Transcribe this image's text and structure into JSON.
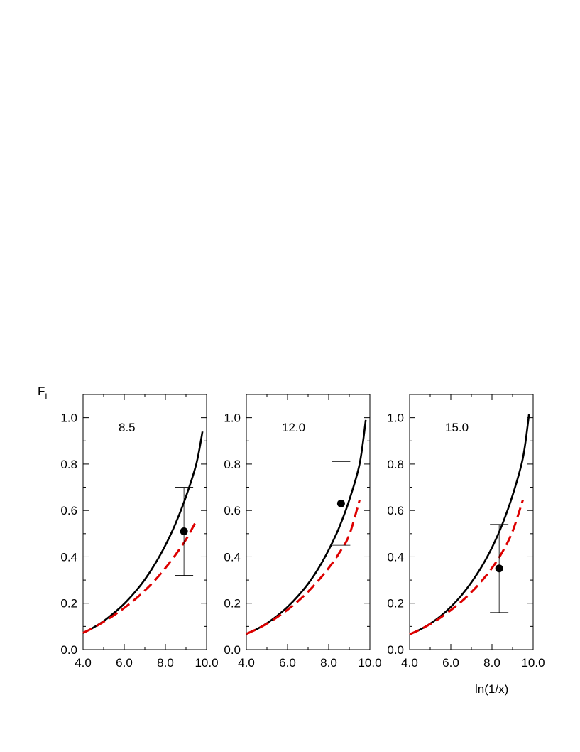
{
  "colors": {
    "solid": "#000000",
    "dashed": "#dd0000",
    "point": "#000000",
    "errorbar": "#000000",
    "frame": "#000000"
  },
  "chart_data": {
    "type": "line",
    "ylabel_main": "F",
    "ylabel_sub": "L",
    "xlabel": "ln(1/x)",
    "xlim": [
      4.0,
      10.0
    ],
    "ylim": [
      0.0,
      1.1
    ],
    "xticks": [
      "4.0",
      "6.0",
      "8.0",
      "10.0"
    ],
    "yticks": [
      "0.0",
      "0.2",
      "0.4",
      "0.6",
      "0.8",
      "1.0"
    ],
    "grid": false,
    "panels": [
      {
        "label": "8.5",
        "series": [
          {
            "style": "solid",
            "color": "#000000",
            "x": [
              4.0,
              4.5,
              5.0,
              5.5,
              6.0,
              6.5,
              7.0,
              7.5,
              8.0,
              8.5,
              9.0,
              9.5,
              9.8
            ],
            "y": [
              0.072,
              0.095,
              0.123,
              0.158,
              0.198,
              0.246,
              0.302,
              0.37,
              0.45,
              0.545,
              0.66,
              0.8,
              0.94
            ]
          },
          {
            "style": "dashed",
            "color": "#dd0000",
            "x": [
              4.0,
              4.5,
              5.0,
              5.5,
              6.0,
              6.5,
              7.0,
              7.5,
              8.0,
              8.5,
              9.0,
              9.5
            ],
            "y": [
              0.072,
              0.094,
              0.12,
              0.148,
              0.18,
              0.215,
              0.255,
              0.3,
              0.352,
              0.41,
              0.475,
              0.555
            ]
          }
        ],
        "points": [
          {
            "x": 8.9,
            "y": 0.51,
            "ylow": 0.32,
            "yhigh": 0.7
          }
        ]
      },
      {
        "label": "12.0",
        "series": [
          {
            "style": "solid",
            "color": "#000000",
            "x": [
              4.0,
              4.5,
              5.0,
              5.5,
              6.0,
              6.5,
              7.0,
              7.5,
              8.0,
              8.5,
              9.0,
              9.5,
              9.8
            ],
            "y": [
              0.068,
              0.088,
              0.114,
              0.146,
              0.184,
              0.23,
              0.284,
              0.35,
              0.43,
              0.525,
              0.645,
              0.8,
              0.99
            ]
          },
          {
            "style": "dashed",
            "color": "#dd0000",
            "x": [
              4.0,
              4.5,
              5.0,
              5.5,
              6.0,
              6.5,
              7.0,
              7.5,
              8.0,
              8.5,
              9.0,
              9.5
            ],
            "y": [
              0.068,
              0.088,
              0.112,
              0.14,
              0.172,
              0.208,
              0.25,
              0.298,
              0.352,
              0.415,
              0.495,
              0.645
            ]
          }
        ],
        "points": [
          {
            "x": 8.6,
            "y": 0.63,
            "ylow": 0.45,
            "yhigh": 0.81
          }
        ]
      },
      {
        "label": "15.0",
        "series": [
          {
            "style": "solid",
            "color": "#000000",
            "x": [
              4.0,
              4.5,
              5.0,
              5.5,
              6.0,
              6.5,
              7.0,
              7.5,
              8.0,
              8.5,
              9.0,
              9.5,
              9.8
            ],
            "y": [
              0.066,
              0.086,
              0.112,
              0.144,
              0.184,
              0.232,
              0.29,
              0.358,
              0.44,
              0.54,
              0.665,
              0.825,
              1.015
            ]
          },
          {
            "style": "dashed",
            "color": "#dd0000",
            "x": [
              4.0,
              4.5,
              5.0,
              5.5,
              6.0,
              6.5,
              7.0,
              7.5,
              8.0,
              8.5,
              9.0,
              9.5
            ],
            "y": [
              0.066,
              0.086,
              0.11,
              0.138,
              0.17,
              0.206,
              0.248,
              0.296,
              0.352,
              0.42,
              0.51,
              0.645
            ]
          }
        ],
        "points": [
          {
            "x": 8.35,
            "y": 0.35,
            "ylow": 0.16,
            "yhigh": 0.54
          }
        ]
      }
    ]
  }
}
